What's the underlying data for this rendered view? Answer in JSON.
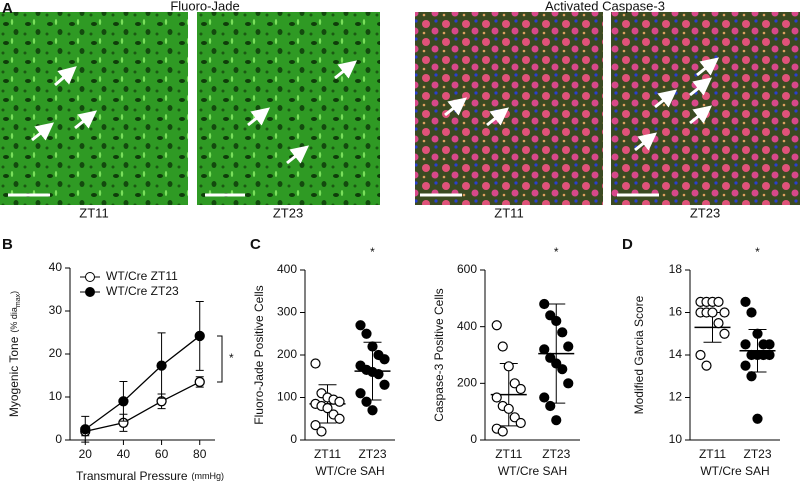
{
  "panels": {
    "a": "A",
    "b": "B",
    "c": "C",
    "d": "D"
  },
  "images": {
    "fluoro_title": "Fluoro-Jade",
    "caspase_title": "Activated Caspase-3",
    "captions": [
      "ZT11",
      "ZT23",
      "ZT11",
      "ZT23"
    ]
  },
  "chart_data": [
    {
      "type": "line",
      "x_label": "Transmural Pressure",
      "x_unit": "(mmHg)",
      "y_label": "Myogenic Tone",
      "y_label_unit": "(% dia",
      "y_label_sub": "max",
      "y_label_close": ")",
      "x": [
        20,
        40,
        60,
        80
      ],
      "xlim": [
        12,
        88
      ],
      "xticks": [
        20,
        40,
        60,
        80
      ],
      "ylim": [
        0,
        40
      ],
      "yticks": [
        0,
        10,
        20,
        30,
        40
      ],
      "series": [
        {
          "name": "WT/Cre ZT11",
          "color": "#000000",
          "marker": "open",
          "values": [
            2,
            4,
            9,
            13.5
          ],
          "errors": [
            1,
            2,
            1.7,
            1.2
          ]
        },
        {
          "name": "WT/Cre ZT23",
          "color": "#000000",
          "marker": "filled",
          "values": [
            2.5,
            9,
            17.3,
            24.2
          ],
          "errors": [
            3,
            4.6,
            7.6,
            8
          ]
        }
      ],
      "annotation": "*"
    },
    {
      "type": "dot",
      "y_label": "Fluoro-Jade Positive Cells",
      "x_label": "WT/Cre SAH",
      "categories": [
        "ZT11",
        "ZT23"
      ],
      "ylim": [
        0,
        400
      ],
      "yticks": [
        0,
        100,
        200,
        300,
        400
      ],
      "markers": [
        "open",
        "filled"
      ],
      "points": [
        [
          180,
          110,
          100,
          95,
          90,
          85,
          80,
          75,
          60,
          50,
          35,
          20
        ],
        [
          270,
          250,
          220,
          200,
          190,
          175,
          165,
          160,
          155,
          130,
          110,
          90,
          70
        ]
      ],
      "means": [
        85,
        162
      ],
      "errors": [
        45,
        68
      ],
      "annotation": "*"
    },
    {
      "type": "dot",
      "y_label": "Caspase-3 Positive Cells",
      "x_label": "WT/Cre SAH",
      "categories": [
        "ZT11",
        "ZT23"
      ],
      "ylim": [
        0,
        600
      ],
      "yticks": [
        0,
        200,
        400,
        600
      ],
      "markers": [
        "open",
        "filled"
      ],
      "points": [
        [
          405,
          330,
          260,
          200,
          180,
          150,
          120,
          110,
          80,
          60,
          40,
          30
        ],
        [
          480,
          440,
          420,
          380,
          330,
          320,
          290,
          270,
          250,
          200,
          150,
          120,
          70
        ]
      ],
      "means": [
        160,
        305
      ],
      "errors": [
        110,
        175
      ],
      "annotation": "*"
    },
    {
      "type": "dot",
      "y_label": "Modified Garcia Score",
      "x_label": "WT/Cre SAH",
      "categories": [
        "ZT11",
        "ZT23"
      ],
      "ylim": [
        10,
        18
      ],
      "yticks": [
        10,
        12,
        14,
        16,
        18
      ],
      "markers": [
        "open",
        "filled"
      ],
      "points": [
        [
          16.5,
          16.5,
          16.5,
          16.5,
          16,
          16,
          16,
          16,
          15.5,
          15,
          14,
          13.5
        ],
        [
          16.5,
          16,
          15,
          14.5,
          14.5,
          14.5,
          14,
          14,
          14,
          14,
          13.5,
          13,
          11
        ]
      ],
      "means": [
        15.3,
        14.2
      ],
      "errors": [
        0.7,
        1
      ],
      "annotation": "*"
    }
  ]
}
